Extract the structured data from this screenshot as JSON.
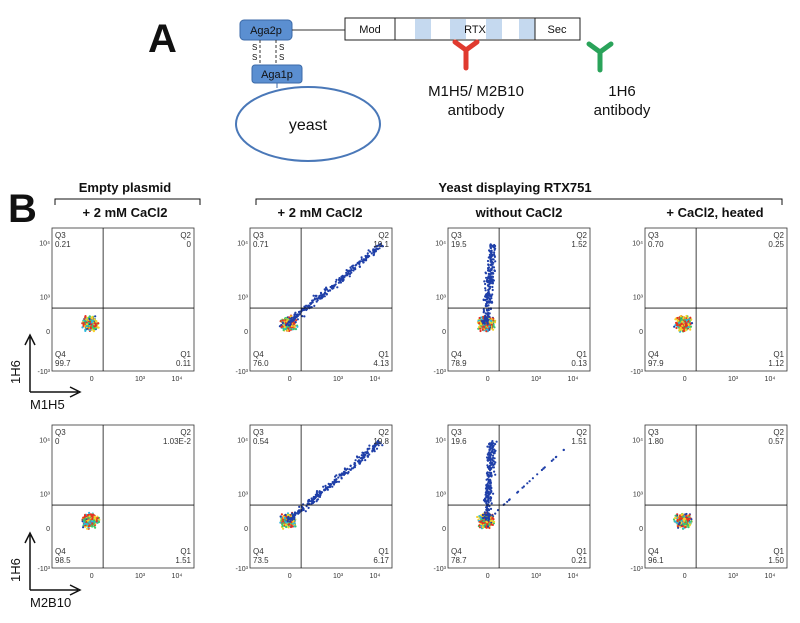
{
  "panel_a": {
    "label": "A",
    "aga2p": "Aga2p",
    "aga1p": "Aga1p",
    "disulfide": "S",
    "yeast": "yeast",
    "domains": [
      "Mod",
      "RTX",
      "Sec"
    ],
    "antibodies": [
      {
        "name": "M1H5/ M2B10",
        "kind": "antibody"
      },
      {
        "name": "1H6",
        "kind": "antibody"
      }
    ]
  },
  "panel_b": {
    "label": "B",
    "groups": [
      "Empty plasmid",
      "Yeast displaying RTX751"
    ],
    "columns": [
      "+ 2 mM CaCl2",
      "+ 2 mM CaCl2",
      "without CaCl2",
      "+ CaCl2, heated"
    ],
    "y_ticks": [
      "10⁴",
      "10³",
      "0",
      "-10³"
    ],
    "x_ticks": [
      "0",
      "10³",
      "10⁴"
    ],
    "quadrant_names": [
      "Q1",
      "Q2",
      "Q3",
      "Q4"
    ],
    "rows": [
      {
        "y_axis": "1H6",
        "x_axis": "M1H5",
        "plots": [
          {
            "Q1": "0.11",
            "Q2": "0",
            "Q3": "0.21",
            "Q4": "99.7"
          },
          {
            "Q1": "4.13",
            "Q2": "19.1",
            "Q3": "0.71",
            "Q4": "76.0"
          },
          {
            "Q1": "0.13",
            "Q2": "1.52",
            "Q3": "19.5",
            "Q4": "78.9"
          },
          {
            "Q1": "1.12",
            "Q2": "0.25",
            "Q3": "0.70",
            "Q4": "97.9"
          }
        ]
      },
      {
        "y_axis": "1H6",
        "x_axis": "M2B10",
        "plots": [
          {
            "Q1": "1.51",
            "Q2": "1.03E-2",
            "Q3": "0",
            "Q4": "98.5"
          },
          {
            "Q1": "6.17",
            "Q2": "19.8",
            "Q3": "0.54",
            "Q4": "73.5"
          },
          {
            "Q1": "0.21",
            "Q2": "1.51",
            "Q3": "19.6",
            "Q4": "78.7"
          },
          {
            "Q1": "1.50",
            "Q2": "0.57",
            "Q3": "1.80",
            "Q4": "96.1"
          }
        ]
      }
    ]
  }
}
